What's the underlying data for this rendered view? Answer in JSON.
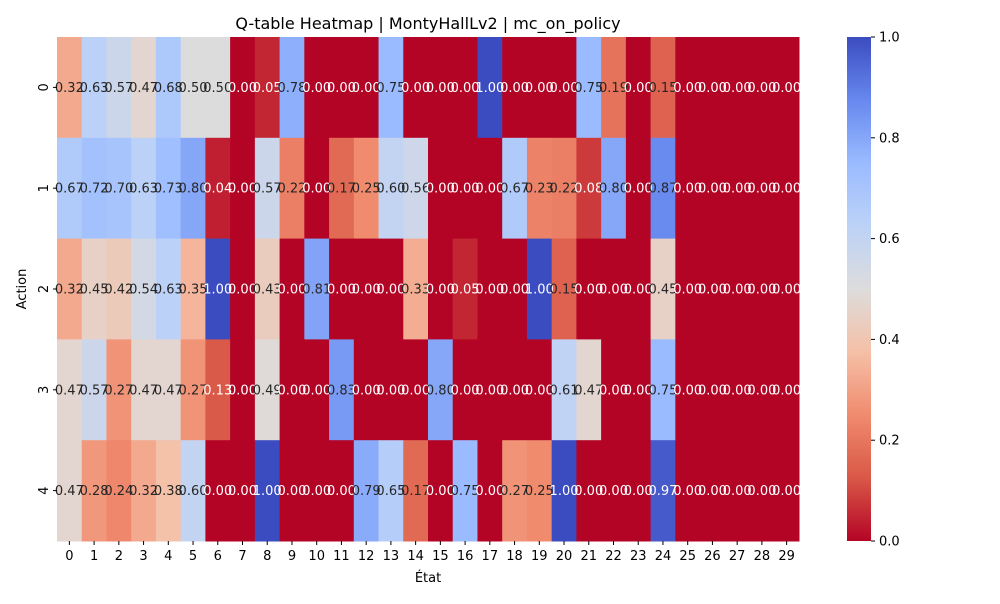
{
  "chart_data": {
    "type": "heatmap",
    "title": "Q-table Heatmap | MontyHallLv2 | mc_on_policy",
    "xlabel": "État",
    "ylabel": "Action",
    "x_categories": [
      "0",
      "1",
      "2",
      "3",
      "4",
      "5",
      "6",
      "7",
      "8",
      "9",
      "10",
      "11",
      "12",
      "13",
      "14",
      "15",
      "16",
      "17",
      "18",
      "19",
      "20",
      "21",
      "22",
      "23",
      "24",
      "25",
      "26",
      "27",
      "28",
      "29"
    ],
    "y_categories": [
      "0",
      "1",
      "2",
      "3",
      "4"
    ],
    "values": [
      [
        0.32,
        0.63,
        0.57,
        0.47,
        0.68,
        0.5,
        0.5,
        0.0,
        0.05,
        0.78,
        0.0,
        0.0,
        0.0,
        0.75,
        0.0,
        0.0,
        0.0,
        1.0,
        0.0,
        0.0,
        0.0,
        0.75,
        0.19,
        0.0,
        0.15,
        0.0,
        0.0,
        0.0,
        0.0,
        0.0
      ],
      [
        0.67,
        0.72,
        0.7,
        0.63,
        0.73,
        0.8,
        0.04,
        0.0,
        0.57,
        0.22,
        0.0,
        0.17,
        0.25,
        0.6,
        0.56,
        0.0,
        0.0,
        0.0,
        0.67,
        0.23,
        0.22,
        0.08,
        0.8,
        0.0,
        0.87,
        0.0,
        0.0,
        0.0,
        0.0,
        0.0
      ],
      [
        0.32,
        0.45,
        0.42,
        0.54,
        0.63,
        0.35,
        1.0,
        0.0,
        0.43,
        0.0,
        0.81,
        0.0,
        0.0,
        0.0,
        0.33,
        0.0,
        0.05,
        0.0,
        0.0,
        1.0,
        0.15,
        0.0,
        0.0,
        0.0,
        0.45,
        0.0,
        0.0,
        0.0,
        0.0,
        0.0
      ],
      [
        0.47,
        0.57,
        0.27,
        0.47,
        0.47,
        0.27,
        0.13,
        0.0,
        0.49,
        0.0,
        0.0,
        0.83,
        0.0,
        0.0,
        0.0,
        0.8,
        0.0,
        0.0,
        0.0,
        0.0,
        0.61,
        0.47,
        0.0,
        0.0,
        0.75,
        0.0,
        0.0,
        0.0,
        0.0,
        0.0
      ],
      [
        0.47,
        0.28,
        0.24,
        0.32,
        0.38,
        0.6,
        0.0,
        0.0,
        1.0,
        0.0,
        0.0,
        0.0,
        0.79,
        0.65,
        0.17,
        0.0,
        0.75,
        0.0,
        0.27,
        0.25,
        1.0,
        0.0,
        0.0,
        0.0,
        0.97,
        0.0,
        0.0,
        0.0,
        0.0,
        0.0
      ]
    ],
    "value_format": "2-decimal",
    "colormap": "coolwarm",
    "vmin": 0,
    "vmax": 1,
    "colorbar_ticks": [
      "0.0",
      "0.2",
      "0.4",
      "0.6",
      "0.8",
      "1.0"
    ]
  }
}
